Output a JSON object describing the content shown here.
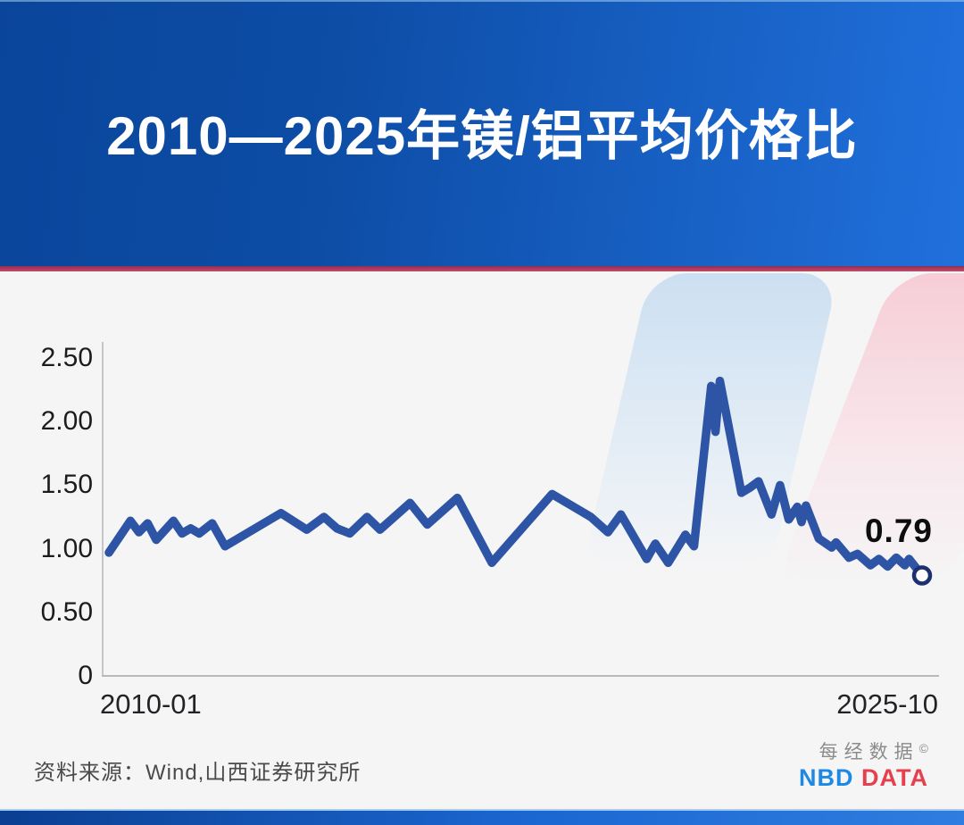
{
  "header": {
    "title": "2010—2025年镁/铝平均价格比"
  },
  "chart_data": {
    "type": "line",
    "title": "2010—2025年镁/铝平均价格比",
    "xlabel": "",
    "ylabel": "",
    "ylim": [
      0,
      2.5
    ],
    "grid": false,
    "legend": "none",
    "line_color": "#2e55a5",
    "marker_ring_color": "#1c2f6e",
    "end_label": "0.79",
    "xticks": [
      "2010-01",
      "2025-10"
    ],
    "yticks": [
      {
        "label": "2.50",
        "value": 2.5
      },
      {
        "label": "2.00",
        "value": 2.0
      },
      {
        "label": "1.50",
        "value": 1.5
      },
      {
        "label": "1.00",
        "value": 1.0
      },
      {
        "label": "0.50",
        "value": 0.5
      },
      {
        "label": "0",
        "value": 0.0
      }
    ],
    "series": [
      {
        "name": "镁/铝平均价格比",
        "x": [
          "2010-01",
          "2010-06",
          "2010-08",
          "2010-10",
          "2010-12",
          "2011-04",
          "2011-06",
          "2011-08",
          "2011-10",
          "2012-01",
          "2012-04",
          "2013-05",
          "2013-11",
          "2014-03",
          "2014-06",
          "2014-09",
          "2015-01",
          "2015-04",
          "2015-11",
          "2016-03",
          "2016-10",
          "2017-06",
          "2018-08",
          "2019-05",
          "2019-09",
          "2019-12",
          "2020-06",
          "2020-08",
          "2020-11",
          "2021-03",
          "2021-05",
          "2021-09",
          "2021-10",
          "2021-11",
          "2022-04",
          "2022-06",
          "2022-08",
          "2022-11",
          "2023-01",
          "2023-03",
          "2023-05",
          "2023-06",
          "2023-07",
          "2023-10",
          "2024-01",
          "2024-02",
          "2024-05",
          "2024-07",
          "2024-10",
          "2024-12",
          "2025-02",
          "2025-04",
          "2025-06",
          "2025-07",
          "2025-10"
        ],
        "values": [
          0.97,
          1.22,
          1.13,
          1.2,
          1.07,
          1.22,
          1.12,
          1.16,
          1.12,
          1.2,
          1.02,
          1.28,
          1.15,
          1.25,
          1.16,
          1.12,
          1.25,
          1.15,
          1.36,
          1.19,
          1.4,
          0.89,
          1.43,
          1.25,
          1.13,
          1.27,
          0.92,
          1.04,
          0.89,
          1.11,
          1.02,
          2.28,
          1.92,
          2.32,
          1.44,
          1.48,
          1.53,
          1.27,
          1.5,
          1.23,
          1.33,
          1.21,
          1.34,
          1.08,
          1.01,
          1.05,
          0.93,
          0.96,
          0.87,
          0.92,
          0.86,
          0.93,
          0.87,
          0.92,
          0.79
        ]
      }
    ]
  },
  "footer": {
    "source": "资料来源：Wind,山西证券研究所",
    "logo": {
      "cn": "每经数据",
      "copyright": "©",
      "en_blue": "NBD",
      "en_red": "DATA"
    }
  },
  "colors": {
    "header_gradient_left": "#0a459b",
    "header_gradient_right": "#2070dc",
    "divider_red": "#b63a59",
    "background": "#f5f5f6",
    "axis_gray": "#bdbdbf",
    "line_blue": "#2e55a5",
    "nbd_blue": "#1e88e5",
    "nbd_red": "#e5404e",
    "bottom_bar_blue": "#1b67d2"
  }
}
